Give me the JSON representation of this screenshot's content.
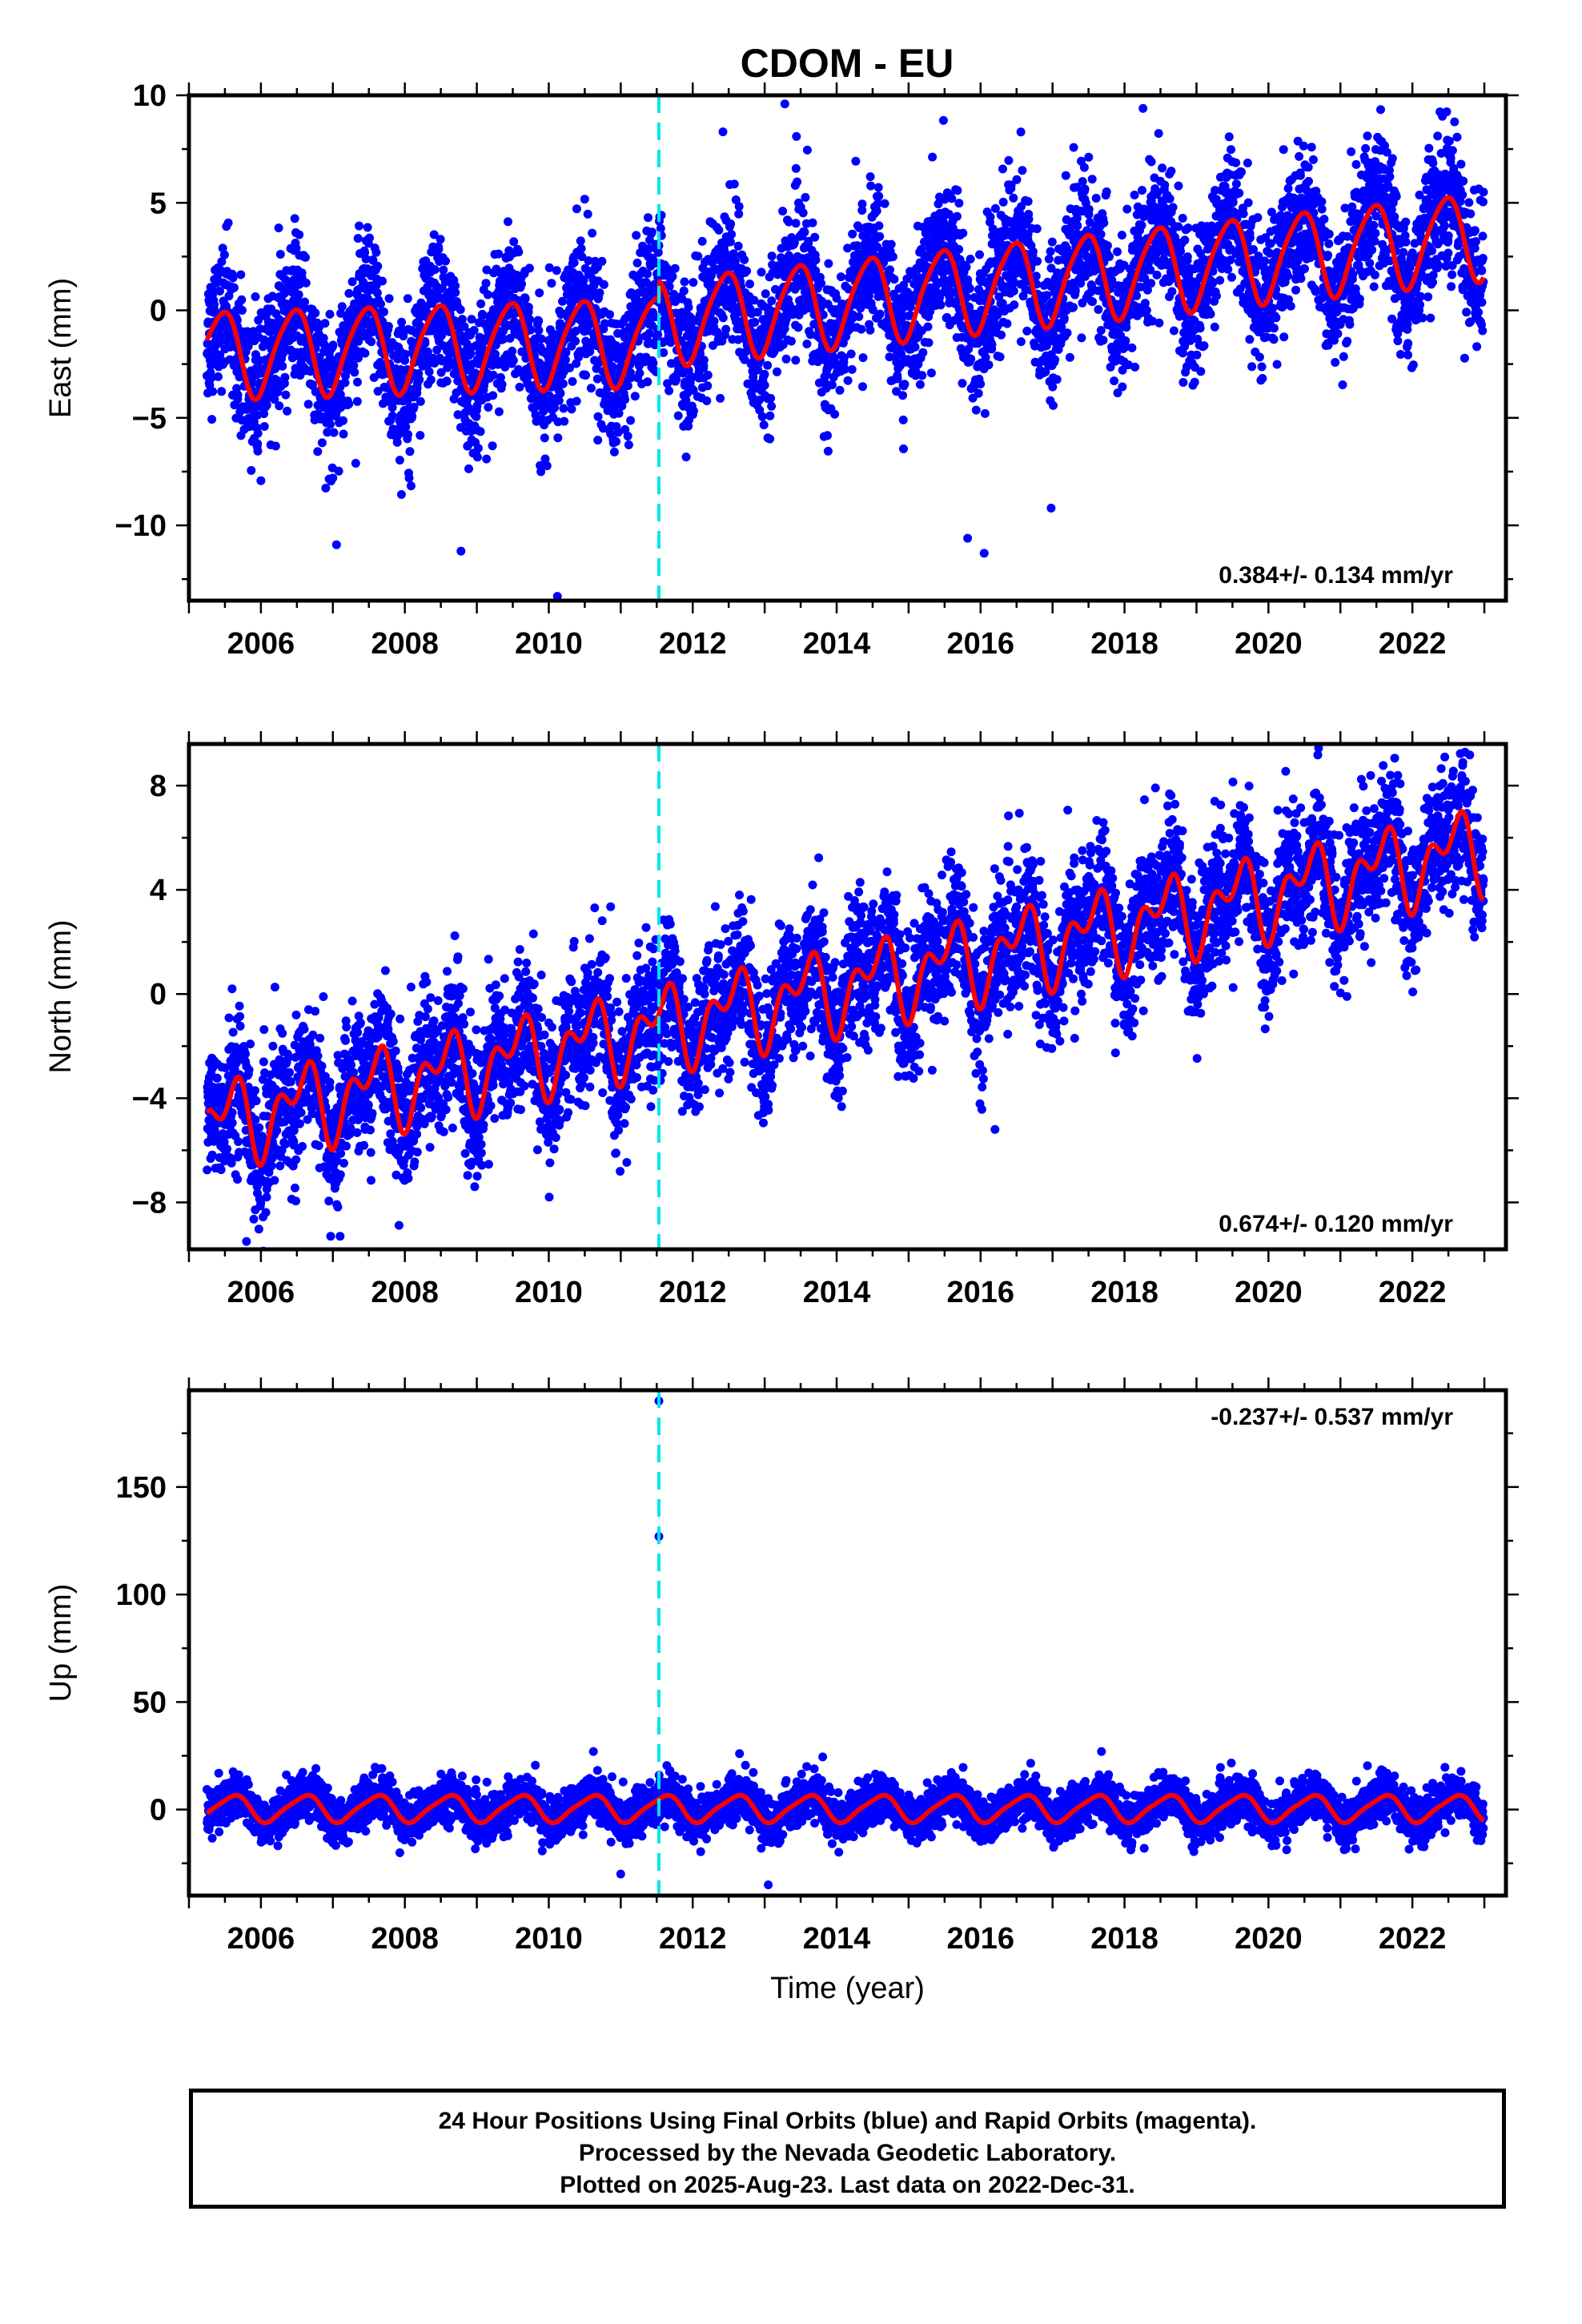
{
  "title": "CDOM - EU",
  "colors": {
    "points": "#0000ff",
    "fit": "#ff0000",
    "event": "#00e5ee",
    "frame": "#000000"
  },
  "chart_data": [
    {
      "type": "scatter",
      "ylabel": "East (mm)",
      "xlim": [
        2005.0,
        2023.3
      ],
      "ylim": [
        -13.5,
        10.0
      ],
      "yticks": [
        10,
        5,
        0,
        -5,
        -10
      ],
      "xticks": [
        2006,
        2008,
        2010,
        2012,
        2014,
        2016,
        2018,
        2020,
        2022
      ],
      "rate_label": "0.384+/- 0.134 mm/yr",
      "rate_position": "bottom-right",
      "event_line_x": 2011.53,
      "series": [
        {
          "kind": "points",
          "x_range": [
            2005.25,
            2022.99
          ],
          "model": "east",
          "noise": 1.6
        },
        {
          "kind": "fit",
          "model": "east"
        }
      ],
      "outliers": [
        [
          2010.12,
          -13.3
        ],
        [
          2007.05,
          -10.9
        ],
        [
          2008.78,
          -11.2
        ],
        [
          2015.82,
          -10.6
        ],
        [
          2016.05,
          -11.3
        ],
        [
          2013.28,
          9.6
        ],
        [
          2012.42,
          8.3
        ],
        [
          2021.55,
          7.9
        ],
        [
          2022.4,
          7.3
        ],
        [
          2016.98,
          -9.2
        ]
      ],
      "grid": false
    },
    {
      "type": "scatter",
      "ylabel": "North (mm)",
      "xlim": [
        2005.0,
        2023.3
      ],
      "ylim": [
        -9.8,
        9.6
      ],
      "yticks": [
        8,
        4,
        0,
        -4,
        -8
      ],
      "xticks": [
        2006,
        2008,
        2010,
        2012,
        2014,
        2016,
        2018,
        2020,
        2022
      ],
      "rate_label": "0.674+/- 0.120 mm/yr",
      "rate_position": "bottom-right",
      "event_line_x": 2011.53,
      "series": [
        {
          "kind": "points",
          "x_range": [
            2005.25,
            2022.99
          ],
          "model": "north",
          "noise": 1.3
        },
        {
          "kind": "fit",
          "model": "north"
        }
      ],
      "outliers": [
        [
          2022.45,
          9.1
        ],
        [
          2005.6,
          0.2
        ],
        [
          2007.1,
          -9.3
        ],
        [
          2016.2,
          -5.2
        ],
        [
          2005.8,
          -9.5
        ]
      ],
      "grid": false
    },
    {
      "type": "scatter",
      "ylabel": "Up (mm)",
      "xlabel": "Time (year)",
      "xlim": [
        2005.0,
        2023.3
      ],
      "ylim": [
        -40,
        195
      ],
      "yticks": [
        150,
        100,
        50,
        0
      ],
      "xticks": [
        2006,
        2008,
        2010,
        2012,
        2014,
        2016,
        2018,
        2020,
        2022
      ],
      "rate_label": "-0.237+/- 0.537 mm/yr",
      "rate_position": "top-right",
      "event_line_x": 2011.53,
      "series": [
        {
          "kind": "points",
          "x_range": [
            2005.25,
            2022.99
          ],
          "model": "up",
          "noise": 5.0
        },
        {
          "kind": "fit",
          "model": "up"
        }
      ],
      "outliers": [
        [
          2011.53,
          190
        ],
        [
          2011.53,
          127
        ],
        [
          2013.05,
          -35
        ],
        [
          2010.62,
          27
        ],
        [
          2012.65,
          26
        ],
        [
          2017.68,
          27
        ],
        [
          2011.0,
          -30
        ]
      ],
      "grid": false
    }
  ],
  "caption": {
    "line1": "24 Hour Positions Using Final Orbits (blue) and Rapid Orbits (magenta).",
    "line2": "Processed by the Nevada Geodetic Laboratory.",
    "line3": "Plotted on 2025-Aug-23. Last data on 2022-Dec-31."
  }
}
